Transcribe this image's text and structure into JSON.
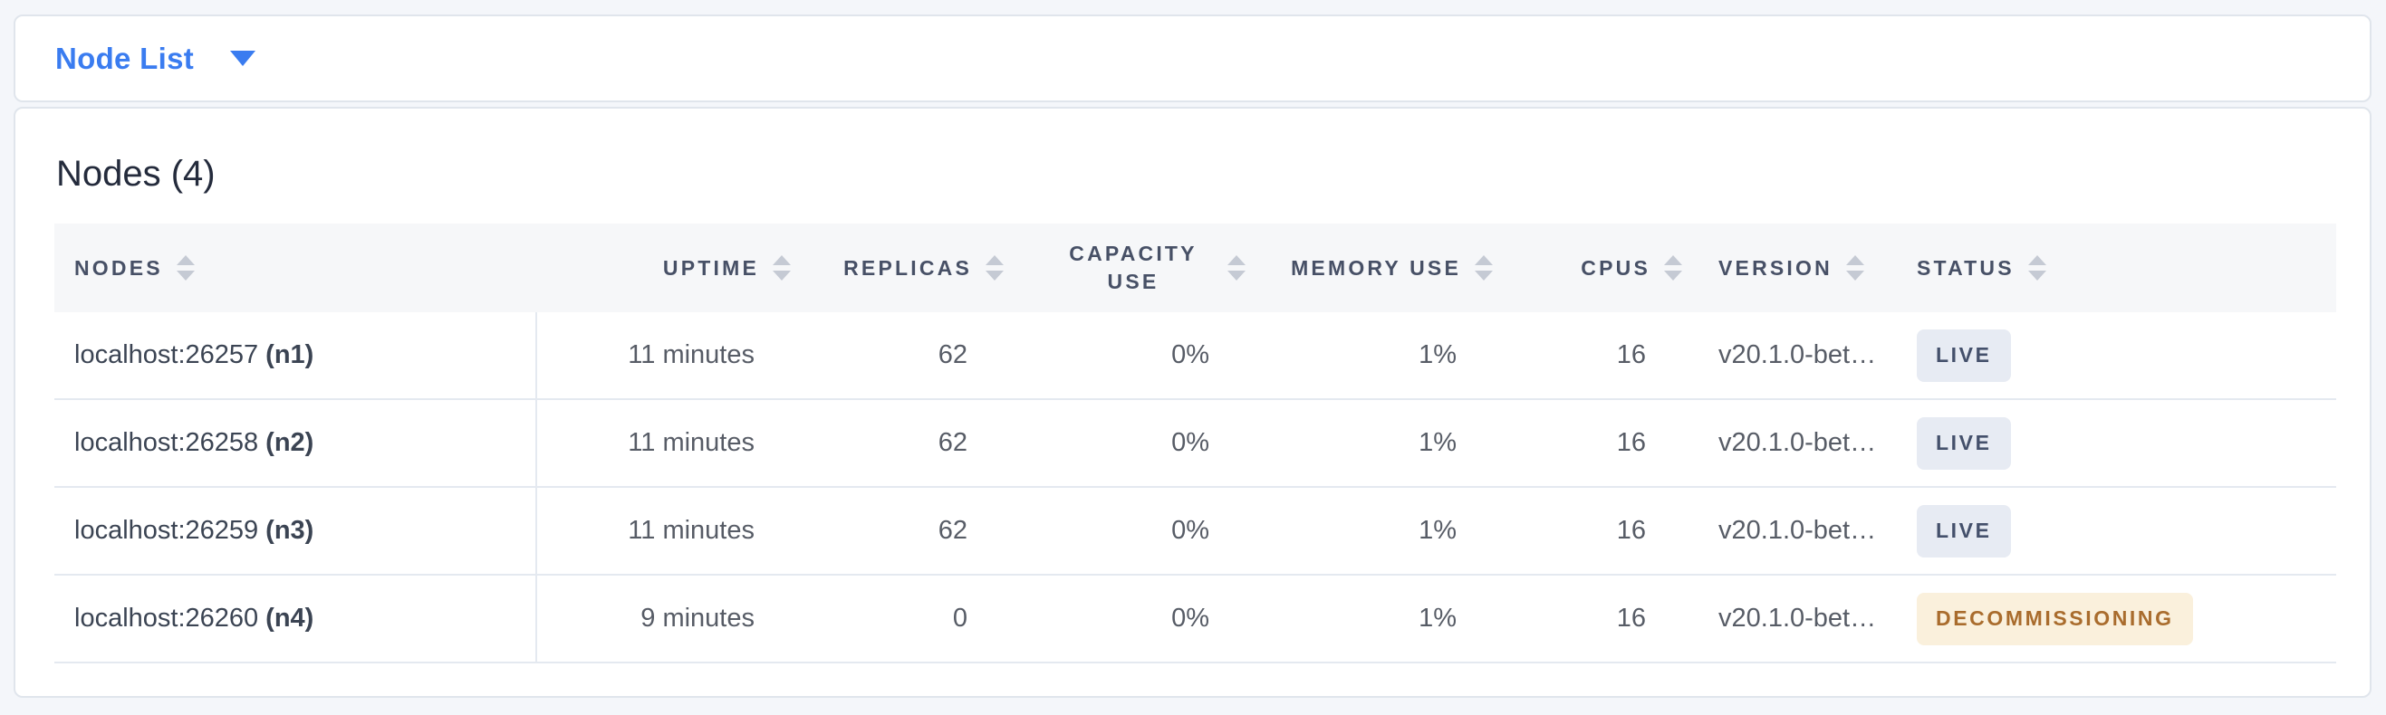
{
  "toolbar": {
    "view_selector": {
      "label": "Node List",
      "icon": "caret-down-icon"
    }
  },
  "panel": {
    "title": "Nodes (4)"
  },
  "table": {
    "columns": [
      {
        "key": "nodes",
        "label": "NODES",
        "align": "left",
        "sort_icon": "sort-carets"
      },
      {
        "key": "uptime",
        "label": "UPTIME",
        "align": "right",
        "sort_icon": "sort-carets"
      },
      {
        "key": "replicas",
        "label": "REPLICAS",
        "align": "right",
        "sort_icon": "sort-carets"
      },
      {
        "key": "capacity_use",
        "label": "CAPACITY USE",
        "align": "right",
        "sort_icon": "sort-carets"
      },
      {
        "key": "memory_use",
        "label": "MEMORY USE",
        "align": "right",
        "sort_icon": "sort-carets"
      },
      {
        "key": "cpus",
        "label": "CPUS",
        "align": "right",
        "sort_icon": "sort-carets"
      },
      {
        "key": "version",
        "label": "VERSION",
        "align": "left",
        "sort_icon": "sort-carets"
      },
      {
        "key": "status",
        "label": "STATUS",
        "align": "left",
        "sort_icon": "sort-carets"
      }
    ],
    "rows": [
      {
        "node_address": "localhost:26257",
        "node_id": "(n1)",
        "uptime": "11 minutes",
        "replicas": "62",
        "capacity_use": "0%",
        "memory_use": "1%",
        "cpus": "16",
        "version": "v20.1.0-bet…",
        "status": "LIVE",
        "status_type": "live"
      },
      {
        "node_address": "localhost:26258",
        "node_id": "(n2)",
        "uptime": "11 minutes",
        "replicas": "62",
        "capacity_use": "0%",
        "memory_use": "1%",
        "cpus": "16",
        "version": "v20.1.0-bet…",
        "status": "LIVE",
        "status_type": "live"
      },
      {
        "node_address": "localhost:26259",
        "node_id": "(n3)",
        "uptime": "11 minutes",
        "replicas": "62",
        "capacity_use": "0%",
        "memory_use": "1%",
        "cpus": "16",
        "version": "v20.1.0-bet…",
        "status": "LIVE",
        "status_type": "live"
      },
      {
        "node_address": "localhost:26260",
        "node_id": "(n4)",
        "uptime": "9 minutes",
        "replicas": "0",
        "capacity_use": "0%",
        "memory_use": "1%",
        "cpus": "16",
        "version": "v20.1.0-bet…",
        "status": "DECOMMISSIONING",
        "status_type": "decommissioning"
      }
    ]
  },
  "colors": {
    "page_background": "#f4f6fa",
    "card_background": "#ffffff",
    "card_border": "#e0e5ec",
    "accent_blue": "#3a7cf0",
    "header_background": "#f6f7f9",
    "header_text": "#475066",
    "cell_text": "#575c66",
    "node_text": "#3b4453",
    "row_border": "#e4e9f0",
    "sort_caret": "#c5cad4",
    "badge_live_bg": "#e7ebf3",
    "badge_live_text": "#44506b",
    "badge_decommissioning_bg": "#faf0dc",
    "badge_decommissioning_text": "#a96c2d"
  }
}
